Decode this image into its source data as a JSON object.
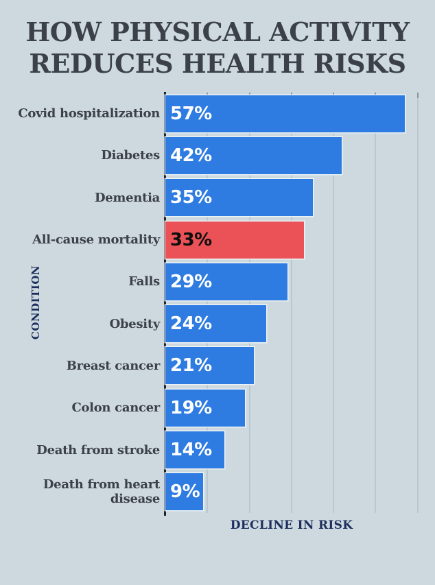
{
  "title": {
    "line1": "HOW PHYSICAL ACTIVITY",
    "line2": "REDUCES HEALTH RISKS"
  },
  "chart_data": {
    "type": "bar",
    "orientation": "horizontal",
    "title": "HOW PHYSICAL ACTIVITY REDUCES HEALTH RISKS",
    "xlabel": "DECLINE IN RISK",
    "ylabel": "CONDITION",
    "categories": [
      "Covid hospitalization",
      "Diabetes",
      "Dementia",
      "All-cause mortality",
      "Falls",
      "Obesity",
      "Breast cancer",
      "Colon cancer",
      "Death from stroke",
      "Death from heart\ndisease"
    ],
    "values": [
      57,
      42,
      35,
      33,
      29,
      24,
      21,
      19,
      14,
      9
    ],
    "value_labels": [
      "57%",
      "42%",
      "35%",
      "33%",
      "29%",
      "24%",
      "21%",
      "19%",
      "14%",
      "9%"
    ],
    "highlight_index": 3,
    "xlim": [
      0,
      62
    ],
    "gridline_step": 10,
    "grid": true,
    "legend_position": "none",
    "colors": {
      "bar": "#2e7ce2",
      "highlight_bar": "#ea5257",
      "value_label": "#ffffff",
      "highlight_value_label": "#0e0e0e",
      "background": "#cdd9df",
      "title_text": "#3b4147",
      "category_text": "#3b4147",
      "axis_title_text": "#1d2e5c",
      "axis_line": "#1d2227",
      "gridline": "#b9c8d0"
    }
  }
}
